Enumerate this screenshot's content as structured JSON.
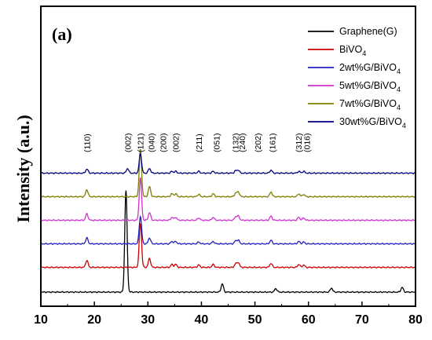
{
  "chart_data": {
    "type": "line",
    "panel_label": "(a)",
    "xlabel": "2θ (degree)",
    "ylabel": "Intensity (a.u.)",
    "xlim": [
      10,
      80
    ],
    "x_ticks": [
      10,
      20,
      30,
      40,
      50,
      60,
      70,
      80
    ],
    "y_ticks_shown": false,
    "grid": false,
    "legend_position": "top-right",
    "series": [
      {
        "name": "Graphene(G)",
        "name_base": "Graphene(G)",
        "name_sub": "",
        "color": "#000000",
        "offset": 0.0,
        "peaks": [
          [
            25.9,
            1.72
          ],
          [
            43.9,
            0.14
          ],
          [
            53.9,
            0.06
          ],
          [
            64.3,
            0.07
          ],
          [
            77.5,
            0.08
          ]
        ]
      },
      {
        "name": "BiVO4",
        "name_base": "BiVO",
        "name_sub": "4",
        "color": "#cc0000",
        "offset": 0.42,
        "peaks": [
          [
            18.6,
            0.12
          ],
          [
            28.6,
            0.75
          ],
          [
            30.3,
            0.15
          ],
          [
            34.5,
            0.05
          ],
          [
            35.2,
            0.05
          ],
          [
            39.5,
            0.04
          ],
          [
            42.2,
            0.05
          ],
          [
            46.4,
            0.06
          ],
          [
            46.9,
            0.08
          ],
          [
            53.0,
            0.07
          ],
          [
            58.2,
            0.05
          ],
          [
            59.1,
            0.04
          ]
        ]
      },
      {
        "name": "2wt%G/BiVO4",
        "name_base": "2wt%G/BiVO",
        "name_sub": "4",
        "color": "#1f1fbf",
        "offset": 0.82,
        "peaks": [
          [
            18.6,
            0.1
          ],
          [
            28.6,
            0.47
          ],
          [
            30.3,
            0.1
          ],
          [
            34.5,
            0.04
          ],
          [
            35.2,
            0.04
          ],
          [
            39.5,
            0.03
          ],
          [
            42.2,
            0.04
          ],
          [
            46.4,
            0.05
          ],
          [
            46.9,
            0.06
          ],
          [
            53.0,
            0.06
          ],
          [
            58.2,
            0.04
          ],
          [
            59.1,
            0.03
          ]
        ]
      },
      {
        "name": "5wt%G/BiVO4",
        "name_base": "5wt%G/BiVO",
        "name_sub": "4",
        "color": "#cc33cc",
        "offset": 1.22,
        "peaks": [
          [
            18.6,
            0.11
          ],
          [
            28.6,
            0.72
          ],
          [
            30.3,
            0.13
          ],
          [
            34.5,
            0.05
          ],
          [
            35.2,
            0.05
          ],
          [
            39.5,
            0.04
          ],
          [
            42.2,
            0.05
          ],
          [
            46.4,
            0.06
          ],
          [
            46.9,
            0.07
          ],
          [
            53.0,
            0.07
          ],
          [
            58.2,
            0.05
          ],
          [
            59.1,
            0.04
          ]
        ]
      },
      {
        "name": "7wt%G/BiVO4",
        "name_base": "7wt%G/BiVO",
        "name_sub": "4",
        "color": "#7f7f00",
        "offset": 1.62,
        "peaks": [
          [
            18.6,
            0.12
          ],
          [
            28.6,
            0.8
          ],
          [
            30.3,
            0.17
          ],
          [
            34.5,
            0.05
          ],
          [
            35.2,
            0.05
          ],
          [
            39.5,
            0.04
          ],
          [
            42.2,
            0.05
          ],
          [
            46.4,
            0.06
          ],
          [
            46.9,
            0.08
          ],
          [
            53.0,
            0.08
          ],
          [
            58.2,
            0.05
          ],
          [
            59.1,
            0.04
          ]
        ]
      },
      {
        "name": "30wt%G/BiVO4",
        "name_base": "30wt%G/BiVO",
        "name_sub": "4",
        "color": "#000080",
        "offset": 2.02,
        "peaks": [
          [
            18.6,
            0.07
          ],
          [
            26.2,
            0.08
          ],
          [
            28.6,
            0.33
          ],
          [
            30.3,
            0.08
          ],
          [
            34.5,
            0.03
          ],
          [
            35.2,
            0.03
          ],
          [
            39.5,
            0.03
          ],
          [
            42.2,
            0.03
          ],
          [
            46.4,
            0.04
          ],
          [
            46.9,
            0.05
          ],
          [
            53.0,
            0.05
          ],
          [
            58.2,
            0.03
          ],
          [
            59.1,
            0.03
          ]
        ]
      }
    ],
    "peak_labels": [
      {
        "text": "(110)",
        "x": 18.6,
        "color": "#000000"
      },
      {
        "text": "(002)",
        "x": 26.2,
        "color": "#e08a00"
      },
      {
        "text": "(121)",
        "x": 28.6,
        "color": "#000000"
      },
      {
        "text": "(040)",
        "x": 30.6,
        "color": "#000000"
      },
      {
        "text": "(200)",
        "x": 32.8,
        "color": "#000000"
      },
      {
        "text": "(002)",
        "x": 35.2,
        "color": "#000000"
      },
      {
        "text": "(211)",
        "x": 39.5,
        "color": "#000000"
      },
      {
        "text": "(051)",
        "x": 42.8,
        "color": "#000000"
      },
      {
        "text": "(132)",
        "x": 46.3,
        "color": "#000000"
      },
      {
        "text": "(240)",
        "x": 47.6,
        "color": "#000000"
      },
      {
        "text": "(202)",
        "x": 50.5,
        "color": "#000000"
      },
      {
        "text": "(161)",
        "x": 53.2,
        "color": "#000000"
      },
      {
        "text": "(312)",
        "x": 58.1,
        "color": "#000000"
      },
      {
        "text": "(016)",
        "x": 59.7,
        "color": "#000000"
      }
    ]
  }
}
